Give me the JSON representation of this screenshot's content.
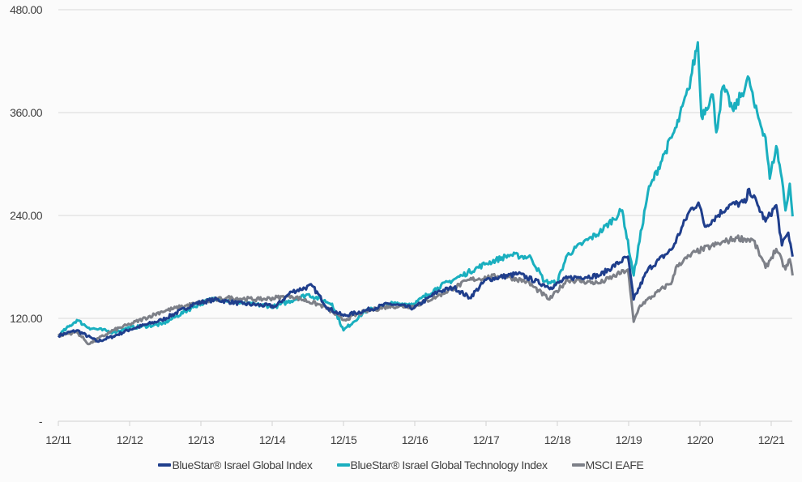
{
  "chart_data": {
    "type": "line",
    "title": "",
    "xlabel": "",
    "ylabel": "",
    "x_unit": "years since 12/11",
    "xlim": [
      0,
      10.3
    ],
    "ylim": [
      0,
      480
    ],
    "grid": true,
    "legend_position": "bottom",
    "y_ticks": [
      {
        "value": 0,
        "label": "-"
      },
      {
        "value": 120,
        "label": "120.00"
      },
      {
        "value": 240,
        "label": "240.00"
      },
      {
        "value": 360,
        "label": "360.00"
      },
      {
        "value": 480,
        "label": "480.00"
      }
    ],
    "x_ticks": [
      {
        "value": 0,
        "label": "12/11"
      },
      {
        "value": 1,
        "label": "12/12"
      },
      {
        "value": 2,
        "label": "12/13"
      },
      {
        "value": 3,
        "label": "12/14"
      },
      {
        "value": 4,
        "label": "12/15"
      },
      {
        "value": 5,
        "label": "12/16"
      },
      {
        "value": 6,
        "label": "12/17"
      },
      {
        "value": 7,
        "label": "12/18"
      },
      {
        "value": 8,
        "label": "12/19"
      },
      {
        "value": 9,
        "label": "12/20"
      },
      {
        "value": 10,
        "label": "12/21"
      }
    ],
    "series": [
      {
        "name": "BlueStar® Israel Global Index",
        "color": "#1f3e8c",
        "points": [
          [
            0,
            100
          ],
          [
            0.26,
            106
          ],
          [
            0.55,
            93
          ],
          [
            0.77,
            99
          ],
          [
            1.0,
            107
          ],
          [
            1.45,
            118
          ],
          [
            1.91,
            137
          ],
          [
            2.19,
            142
          ],
          [
            2.59,
            137
          ],
          [
            3.05,
            134
          ],
          [
            3.27,
            151
          ],
          [
            3.56,
            158
          ],
          [
            3.78,
            132
          ],
          [
            4.0,
            123
          ],
          [
            4.3,
            129
          ],
          [
            4.64,
            137
          ],
          [
            4.99,
            132
          ],
          [
            5.32,
            151
          ],
          [
            5.55,
            156
          ],
          [
            5.77,
            144
          ],
          [
            6.0,
            165
          ],
          [
            6.45,
            172
          ],
          [
            6.91,
            156
          ],
          [
            7.14,
            167
          ],
          [
            7.59,
            170
          ],
          [
            7.99,
            192
          ],
          [
            8.07,
            142
          ],
          [
            8.27,
            177
          ],
          [
            8.61,
            201
          ],
          [
            8.86,
            246
          ],
          [
            8.98,
            255
          ],
          [
            9.07,
            227
          ],
          [
            9.41,
            252
          ],
          [
            9.64,
            255
          ],
          [
            9.69,
            271
          ],
          [
            9.81,
            252
          ],
          [
            9.92,
            233
          ],
          [
            10.07,
            252
          ],
          [
            10.15,
            205
          ],
          [
            10.24,
            220
          ],
          [
            10.3,
            192
          ]
        ]
      },
      {
        "name": "BlueStar® Israel Global Technology Index",
        "color": "#1aafbf",
        "points": [
          [
            0,
            100
          ],
          [
            0.26,
            118
          ],
          [
            0.43,
            109
          ],
          [
            0.77,
            104
          ],
          [
            1.0,
            109
          ],
          [
            1.45,
            113
          ],
          [
            1.91,
            134
          ],
          [
            2.19,
            144
          ],
          [
            2.59,
            137
          ],
          [
            3.05,
            134
          ],
          [
            3.5,
            148
          ],
          [
            3.84,
            137
          ],
          [
            4.0,
            106
          ],
          [
            4.3,
            128
          ],
          [
            4.64,
            137
          ],
          [
            4.99,
            137
          ],
          [
            5.32,
            156
          ],
          [
            5.66,
            170
          ],
          [
            6.0,
            184
          ],
          [
            6.34,
            194
          ],
          [
            6.63,
            191
          ],
          [
            6.82,
            163
          ],
          [
            6.99,
            161
          ],
          [
            7.14,
            194
          ],
          [
            7.36,
            208
          ],
          [
            7.59,
            220
          ],
          [
            7.91,
            246
          ],
          [
            8.07,
            170
          ],
          [
            8.27,
            267
          ],
          [
            8.5,
            312
          ],
          [
            8.67,
            343
          ],
          [
            8.84,
            387
          ],
          [
            8.97,
            442
          ],
          [
            9.02,
            356
          ],
          [
            9.18,
            381
          ],
          [
            9.23,
            337
          ],
          [
            9.32,
            390
          ],
          [
            9.47,
            362
          ],
          [
            9.69,
            400
          ],
          [
            9.77,
            366
          ],
          [
            9.92,
            331
          ],
          [
            9.98,
            283
          ],
          [
            10.07,
            321
          ],
          [
            10.15,
            283
          ],
          [
            10.2,
            246
          ],
          [
            10.26,
            277
          ],
          [
            10.3,
            239
          ]
        ]
      },
      {
        "name": "MSCI EAFE",
        "color": "#7d8088",
        "points": [
          [
            0,
            100
          ],
          [
            0.26,
            104
          ],
          [
            0.43,
            90
          ],
          [
            0.77,
            106
          ],
          [
            1.0,
            113
          ],
          [
            1.45,
            128
          ],
          [
            1.91,
            137
          ],
          [
            2.36,
            144
          ],
          [
            2.82,
            142
          ],
          [
            3.27,
            146
          ],
          [
            3.73,
            134
          ],
          [
            4.0,
            118
          ],
          [
            4.3,
            128
          ],
          [
            4.64,
            134
          ],
          [
            4.99,
            134
          ],
          [
            5.32,
            146
          ],
          [
            5.77,
            165
          ],
          [
            6.23,
            170
          ],
          [
            6.57,
            163
          ],
          [
            6.89,
            142
          ],
          [
            7.14,
            165
          ],
          [
            7.59,
            161
          ],
          [
            7.99,
            177
          ],
          [
            8.07,
            116
          ],
          [
            8.16,
            135
          ],
          [
            8.61,
            163
          ],
          [
            8.68,
            182
          ],
          [
            8.95,
            198
          ],
          [
            9.3,
            208
          ],
          [
            9.52,
            214
          ],
          [
            9.75,
            211
          ],
          [
            9.92,
            179
          ],
          [
            10.07,
            201
          ],
          [
            10.2,
            177
          ],
          [
            10.26,
            189
          ],
          [
            10.3,
            170
          ]
        ]
      }
    ]
  }
}
